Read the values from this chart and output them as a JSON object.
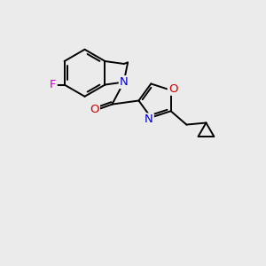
{
  "background_color": "#ebebeb",
  "bond_color": "#000000",
  "bond_width": 1.4,
  "atom_colors": {
    "N": "#0000cc",
    "O": "#cc0000",
    "F": "#cc00cc",
    "C": "#000000"
  },
  "font_size": 9.5,
  "fig_width": 3.0,
  "fig_height": 3.0,
  "dpi": 100
}
